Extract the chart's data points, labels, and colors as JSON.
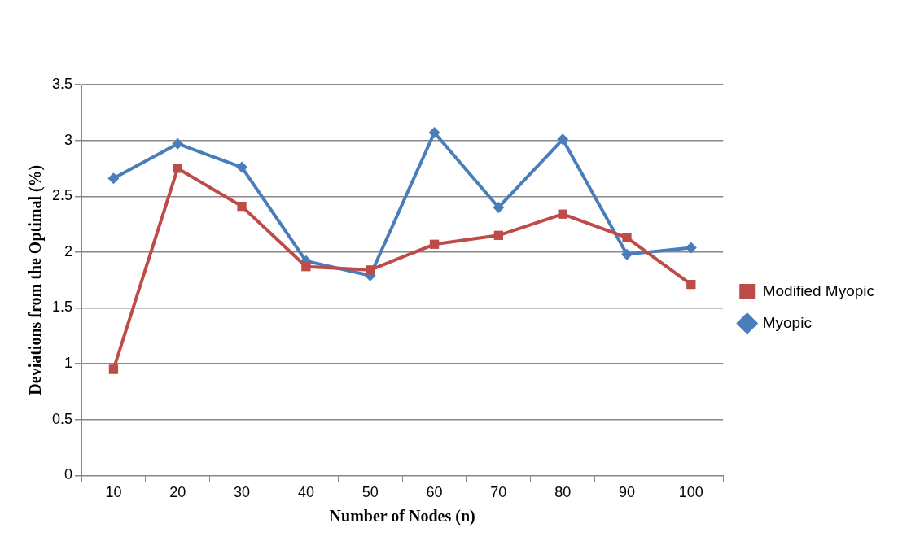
{
  "chart_data": {
    "type": "line",
    "xlabel": "Number of Nodes (n)",
    "ylabel": "Deviations from the Optimal (%)",
    "categories": [
      "10",
      "20",
      "30",
      "40",
      "50",
      "60",
      "70",
      "80",
      "90",
      "100"
    ],
    "series": [
      {
        "name": "Myopic",
        "color": "#4a7ebb",
        "marker": "diamond",
        "values": [
          2.66,
          2.97,
          2.76,
          1.92,
          1.79,
          3.07,
          2.4,
          3.01,
          1.98,
          2.04
        ]
      },
      {
        "name": "Modified Myopic",
        "color": "#be4b48",
        "marker": "square",
        "values": [
          0.95,
          2.75,
          2.41,
          1.87,
          1.84,
          2.07,
          2.15,
          2.34,
          2.13,
          1.71
        ]
      }
    ],
    "ylim": [
      0,
      3.5
    ],
    "yticks": [
      0,
      0.5,
      1,
      1.5,
      2,
      2.5,
      3,
      3.5
    ],
    "grid": "y",
    "legend": "right"
  }
}
